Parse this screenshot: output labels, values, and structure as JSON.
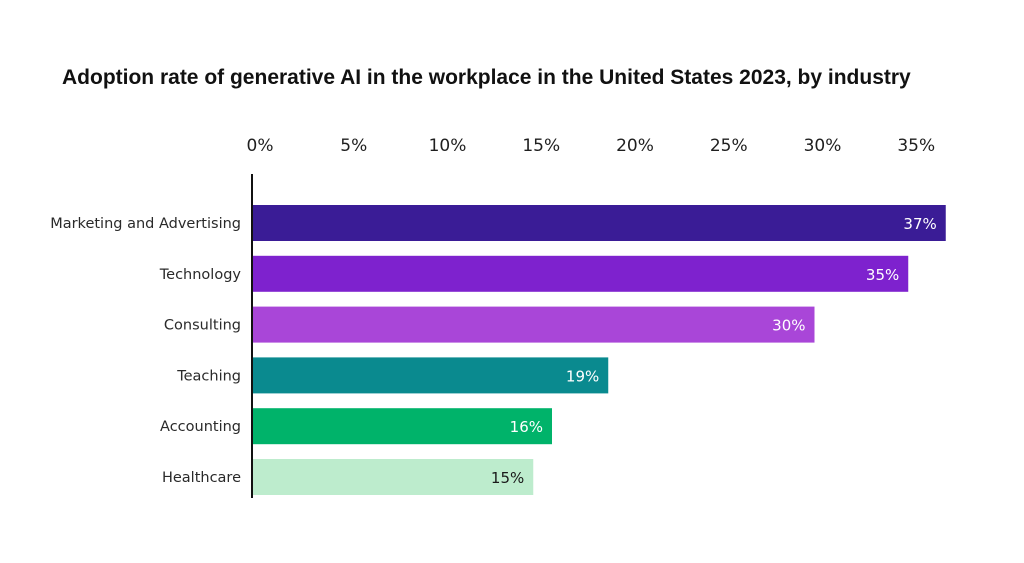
{
  "chart_data": {
    "type": "bar",
    "orientation": "horizontal",
    "title": "Adoption rate of generative AI in the workplace in the United States 2023, by industry",
    "categories": [
      "Marketing and Advertising",
      "Technology",
      "Consulting",
      "Teaching",
      "Accounting",
      "Healthcare"
    ],
    "values": [
      37,
      35,
      30,
      19,
      16,
      15
    ],
    "data_labels": [
      "37%",
      "35%",
      "30%",
      "19%",
      "16%",
      "15%"
    ],
    "bar_colors": [
      "#3a1c96",
      "#7e22ce",
      "#a946d8",
      "#0a8a8f",
      "#00b36a",
      "#bdeccd"
    ],
    "label_colors": [
      "#ffffff",
      "#ffffff",
      "#ffffff",
      "#ffffff",
      "#ffffff",
      "#1a1a1a"
    ],
    "x_ticks": [
      0,
      5,
      10,
      15,
      20,
      25,
      30,
      35
    ],
    "x_tick_labels": [
      "0%",
      "5%",
      "10%",
      "15%",
      "20%",
      "25%",
      "30%",
      "35%"
    ],
    "xlim": [
      0,
      36
    ],
    "xaxis_position": "top",
    "grid": false,
    "legend": "none"
  }
}
